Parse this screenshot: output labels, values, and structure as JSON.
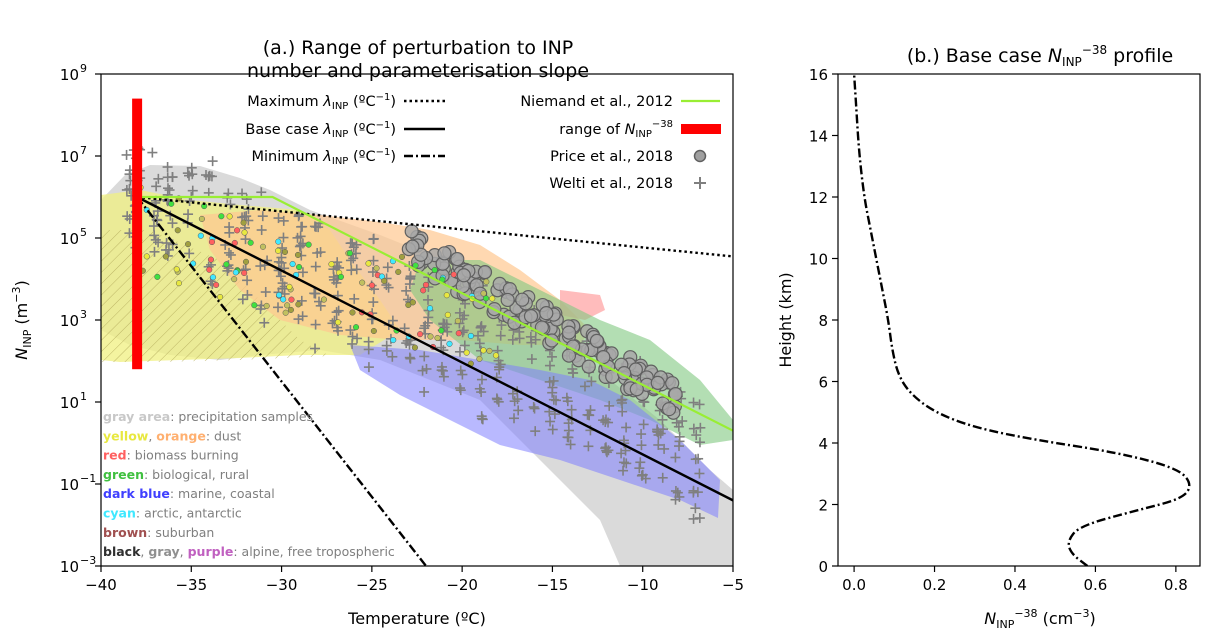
{
  "chart_data": [
    {
      "panel": "a",
      "type": "line",
      "title_line1": "(a.) Range of perturbation to INP",
      "title_line2": "number and parameterisation slope",
      "xlabel": "Temperature  (ºC)",
      "ylabel_main": "N",
      "ylabel_sub": "INP",
      "ylabel_unit": " (m",
      "ylabel_exp": "−3",
      "ylabel_close": ")",
      "xlim": [
        -40,
        -5
      ],
      "ylim_log10": [
        -3,
        9
      ],
      "y_scale": "log",
      "x_ticks": [
        -40,
        -35,
        -30,
        -25,
        -20,
        -15,
        -10,
        -5
      ],
      "x_tick_labels": [
        "−40",
        "−35",
        "−30",
        "−25",
        "−20",
        "−15",
        "−10",
        "−5"
      ],
      "y_ticks_log10": [
        -3,
        -1,
        1,
        3,
        5,
        7,
        9
      ],
      "y_tick_exps": [
        "−3",
        "−1",
        "1",
        "3",
        "5",
        "7",
        "9"
      ],
      "y_tick_base": "10",
      "series": [
        {
          "name": "Maximum λINP (ºC−1)",
          "style": "dotted",
          "color": "#000000",
          "x": [
            -38,
            -5
          ],
          "log10_y": [
            6.0,
            4.55
          ]
        },
        {
          "name": "Base case λINP (ºC−1)",
          "style": "solid",
          "color": "#000000",
          "x": [
            -38,
            -5
          ],
          "log10_y": [
            6.0,
            -1.4
          ]
        },
        {
          "name": "Minimum λINP (ºC−1)",
          "style": "dashdot",
          "color": "#000000",
          "x": [
            -38,
            -22
          ],
          "log10_y": [
            6.0,
            -3.0
          ]
        },
        {
          "name": "Niemand et al., 2012",
          "style": "solid",
          "color": "#99ee33",
          "x": [
            -38,
            -30.5,
            -5
          ],
          "log10_y": [
            6.0,
            6.0,
            0.3
          ]
        },
        {
          "name": "range of NINP−38",
          "style": "band",
          "color": "#ff0000",
          "x": [
            -38,
            -38
          ],
          "log10_y": [
            1.8,
            8.4
          ]
        }
      ],
      "legend_left": [
        {
          "text_main": "Maximum ",
          "text_sym": "λ",
          "text_sub": "INP",
          "text_unit": " (ºC",
          "text_exp": "−1",
          "text_close": ")",
          "style": "dotted"
        },
        {
          "text_main": "Base case ",
          "text_sym": "λ",
          "text_sub": "INP",
          "text_unit": " (ºC",
          "text_exp": "−1",
          "text_close": ")",
          "style": "solid"
        },
        {
          "text_main": "Minimum ",
          "text_sym": "λ",
          "text_sub": "INP",
          "text_unit": " (ºC",
          "text_exp": "−1",
          "text_close": ")",
          "style": "dashdot"
        }
      ],
      "legend_right": [
        {
          "label": "Niemand et al., 2012",
          "style": "line",
          "color": "#99ee33"
        },
        {
          "label_pre": "range of  ",
          "label_sym": "N",
          "label_sub": "INP",
          "label_exp": "−38",
          "style": "band",
          "color": "#ff0000"
        },
        {
          "label": "Price et al., 2018",
          "style": "circle",
          "color": "#a0a0a0"
        },
        {
          "label": "Welti et al., 2018",
          "style": "plus",
          "color": "#7f7f7f"
        }
      ],
      "categories": [
        {
          "name": "gray area",
          "desc": ": precipitation samples",
          "color": "#c8c8c8"
        },
        {
          "name": "yellow",
          "name2": "orange",
          "sep": ", ",
          "desc": ": dust",
          "color": "#e8e840",
          "color2": "#ffb070"
        },
        {
          "name": "red",
          "desc": ": biomass burning",
          "color": "#ff6060"
        },
        {
          "name": "green",
          "desc": ": biological, rural",
          "color": "#40c040"
        },
        {
          "name": "dark blue",
          "desc": ": marine, coastal",
          "color": "#4040ff"
        },
        {
          "name": "cyan",
          "desc": ": arctic, antarctic",
          "color": "#40e8ff"
        },
        {
          "name": "brown",
          "desc": ": suburban",
          "color": "#a05050"
        },
        {
          "name": "black",
          "name2": "gray",
          "name3": "purple",
          "sep": ", ",
          "desc": ": alpine, free tropospheric",
          "color": "#303030",
          "color2": "#909090",
          "color3": "#c060c0"
        }
      ]
    },
    {
      "panel": "b",
      "type": "line",
      "title_pre": "(b.) Base case  ",
      "title_sym": "N",
      "title_sub": "INP",
      "title_exp": "−38",
      "title_post": " profile",
      "xlabel_sym": "N",
      "xlabel_sub": "INP",
      "xlabel_exp": "−38",
      "xlabel_unit": " (cm",
      "xlabel_unit_exp": "−3",
      "xlabel_close": ")",
      "ylabel": "Height  (km)",
      "xlim": [
        -0.04,
        0.86
      ],
      "ylim": [
        0,
        16
      ],
      "x_ticks": [
        0.0,
        0.2,
        0.4,
        0.6,
        0.8
      ],
      "x_tick_labels": [
        "0.0",
        "0.2",
        "0.4",
        "0.6",
        "0.8"
      ],
      "y_ticks": [
        0,
        2,
        4,
        6,
        8,
        10,
        12,
        14,
        16
      ],
      "y_tick_labels": [
        "0",
        "2",
        "4",
        "6",
        "8",
        "10",
        "12",
        "14",
        "16"
      ],
      "series": [
        {
          "name": "base case profile",
          "style": "dashdot",
          "color": "#000000",
          "x": [
            0.58,
            0.54,
            0.53,
            0.56,
            0.7,
            0.82,
            0.84,
            0.8,
            0.65,
            0.45,
            0.3,
            0.2,
            0.14,
            0.11,
            0.095,
            0.085,
            0.07,
            0.055,
            0.04,
            0.025,
            0.012,
            0.005,
            0.0
          ],
          "y": [
            0.0,
            0.4,
            0.8,
            1.3,
            1.8,
            2.2,
            2.7,
            3.2,
            3.7,
            4.1,
            4.5,
            5.0,
            5.6,
            6.2,
            7.0,
            8.0,
            9.0,
            10.0,
            11.0,
            12.0,
            13.5,
            15.0,
            16.0
          ]
        }
      ]
    }
  ]
}
